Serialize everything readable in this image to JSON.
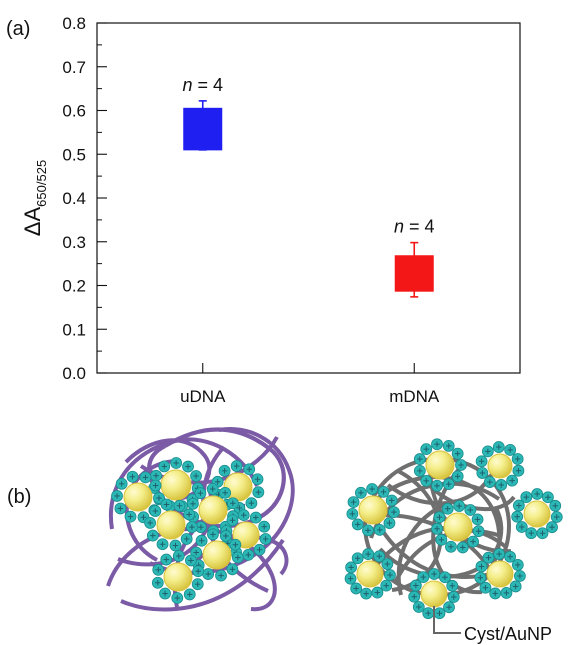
{
  "chart_data": {
    "type": "box",
    "panel_label_a": "(a)",
    "panel_label_b": "(b)",
    "ylabel_main": "ΔA",
    "ylabel_sub": "650/525",
    "ylim": [
      0,
      0.8
    ],
    "yticks": [
      "0.0",
      "0.1",
      "0.2",
      "0.3",
      "0.4",
      "0.5",
      "0.6",
      "0.7",
      "0.8"
    ],
    "grid": false,
    "categories": [
      "uDNA",
      "mDNA"
    ],
    "series": [
      {
        "category": "uDNA",
        "box_low": 0.51,
        "box_high": 0.605,
        "whisker_low": 0.51,
        "whisker_high": 0.622,
        "color": "#1f1ff2",
        "annotation": {
          "n_symbol": "n",
          "n_rest": " = 4"
        }
      },
      {
        "category": "mDNA",
        "box_low": 0.187,
        "box_high": 0.268,
        "whisker_low": 0.174,
        "whisker_high": 0.298,
        "color": "#f31717",
        "annotation": {
          "n_symbol": "n",
          "n_rest": " = 4"
        }
      }
    ],
    "illustration_callout": "Cyst/AuNP"
  },
  "illustration": {
    "left_cluster_strand_color": "#7b5aa6",
    "right_cluster_strand_color": "#6f6f6f",
    "nanoparticle_color": "#f4ee8a",
    "nanoparticle_rim_color": "#d7c33d",
    "ligand_color": "#2bb8b5",
    "ligand_cross_color": "#1f5f6d"
  }
}
